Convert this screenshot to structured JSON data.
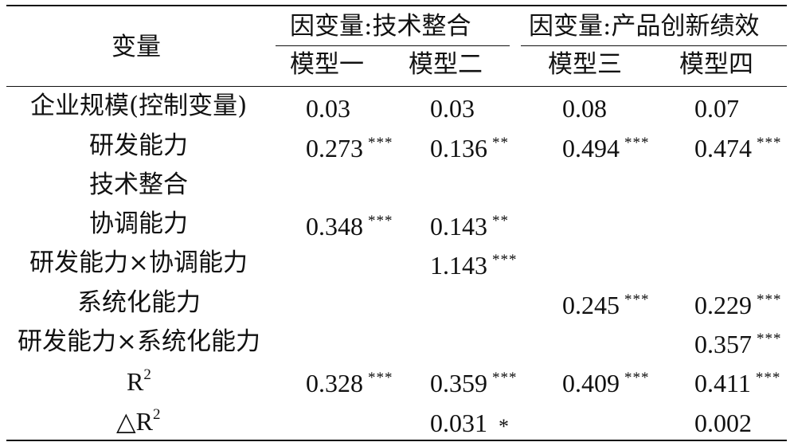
{
  "header": {
    "variable_label": "变量",
    "group1_title": "因变量:技术整合",
    "group2_title": "因变量:产品创新绩效",
    "models": [
      "模型一",
      "模型二",
      "模型三",
      "模型四"
    ]
  },
  "rows": [
    {
      "label": "企业规模(控制变量)",
      "cells": [
        [
          "0.03",
          ""
        ],
        [
          "0.03",
          ""
        ],
        [
          "0.08",
          ""
        ],
        [
          "0.07",
          ""
        ]
      ]
    },
    {
      "label": "研发能力",
      "cells": [
        [
          "0.273",
          "***"
        ],
        [
          "0.136",
          "**"
        ],
        [
          "0.494",
          "***"
        ],
        [
          "0.474",
          "***"
        ]
      ]
    },
    {
      "label": "技术整合",
      "cells": [
        [
          "",
          ""
        ],
        [
          "",
          ""
        ],
        [
          "",
          ""
        ],
        [
          "",
          ""
        ]
      ]
    },
    {
      "label": "协调能力",
      "cells": [
        [
          "0.348",
          "***"
        ],
        [
          "0.143",
          "**"
        ],
        [
          "",
          ""
        ],
        [
          "",
          ""
        ]
      ]
    },
    {
      "label": "研发能力×协调能力",
      "cells": [
        [
          "",
          ""
        ],
        [
          "1.143",
          "***"
        ],
        [
          "",
          ""
        ],
        [
          "",
          ""
        ]
      ]
    },
    {
      "label": "系统化能力",
      "cells": [
        [
          "",
          ""
        ],
        [
          "",
          ""
        ],
        [
          "0.245",
          "***"
        ],
        [
          "0.229",
          "***"
        ]
      ]
    },
    {
      "label": "研发能力×系统化能力",
      "cells": [
        [
          "",
          ""
        ],
        [
          "",
          ""
        ],
        [
          "",
          ""
        ],
        [
          "0.357",
          "***"
        ]
      ]
    },
    {
      "label": "R",
      "label_sup": "2",
      "cells": [
        [
          "0.328",
          "***"
        ],
        [
          "0.359",
          "***"
        ],
        [
          "0.409",
          "***"
        ],
        [
          "0.411",
          "***"
        ]
      ]
    },
    {
      "label": "△R",
      "label_sup": "2",
      "cells": [
        [
          "",
          ""
        ],
        [
          "0.031",
          "*"
        ],
        [
          "",
          ""
        ],
        [
          "0.002",
          ""
        ]
      ]
    }
  ]
}
